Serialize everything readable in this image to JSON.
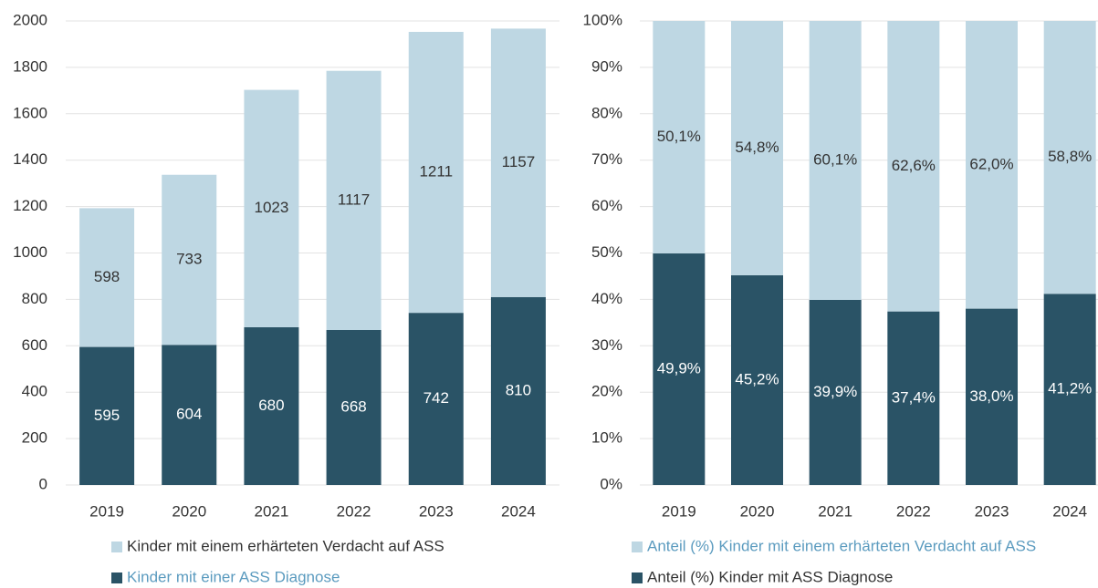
{
  "chart_data": [
    {
      "type": "stacked_bar",
      "categories": [
        "2019",
        "2020",
        "2021",
        "2022",
        "2023",
        "2024"
      ],
      "series": [
        {
          "name": "Kinder mit einer ASS Diagnose",
          "color": "#2a5366",
          "values": [
            595,
            604,
            680,
            668,
            742,
            810
          ]
        },
        {
          "name": "Kinder mit einem erhärteten Verdacht auf ASS",
          "color": "#bed7e3",
          "values": [
            598,
            733,
            1023,
            1117,
            1211,
            1157
          ]
        }
      ],
      "ylim": [
        0,
        2000
      ],
      "yticks": [
        0,
        200,
        400,
        600,
        800,
        1000,
        1200,
        1400,
        1600,
        1800,
        2000
      ],
      "grid": true
    },
    {
      "type": "stacked_bar",
      "categories": [
        "2019",
        "2020",
        "2021",
        "2022",
        "2023",
        "2024"
      ],
      "series": [
        {
          "name": "Anteil (%) Kinder mit ASS Diagnose",
          "color": "#2a5366",
          "values": [
            49.9,
            45.2,
            39.9,
            37.4,
            38.0,
            41.2
          ],
          "value_labels": [
            "49,9%",
            "45,2%",
            "39,9%",
            "37,4%",
            "38,0%",
            "41,2%"
          ]
        },
        {
          "name": "Anteil (%) Kinder mit einem erhärteten Verdacht auf ASS",
          "color": "#bed7e3",
          "values": [
            50.1,
            54.8,
            60.1,
            62.6,
            62.0,
            58.8
          ],
          "value_labels": [
            "50,1%",
            "54,8%",
            "60,1%",
            "62,6%",
            "62,0%",
            "58,8%"
          ]
        }
      ],
      "ylim": [
        0,
        100
      ],
      "yticks": [
        {
          "value": 0,
          "label": "0%"
        },
        {
          "value": 10,
          "label": "10%"
        },
        {
          "value": 20,
          "label": "20%"
        },
        {
          "value": 30,
          "label": "30%"
        },
        {
          "value": 40,
          "label": "40%"
        },
        {
          "value": 50,
          "label": "50%"
        },
        {
          "value": 60,
          "label": "60%"
        },
        {
          "value": 70,
          "label": "70%"
        },
        {
          "value": 80,
          "label": "80%"
        },
        {
          "value": 90,
          "label": "90%"
        },
        {
          "value": 100,
          "label": "100%"
        }
      ],
      "grid": true
    }
  ]
}
